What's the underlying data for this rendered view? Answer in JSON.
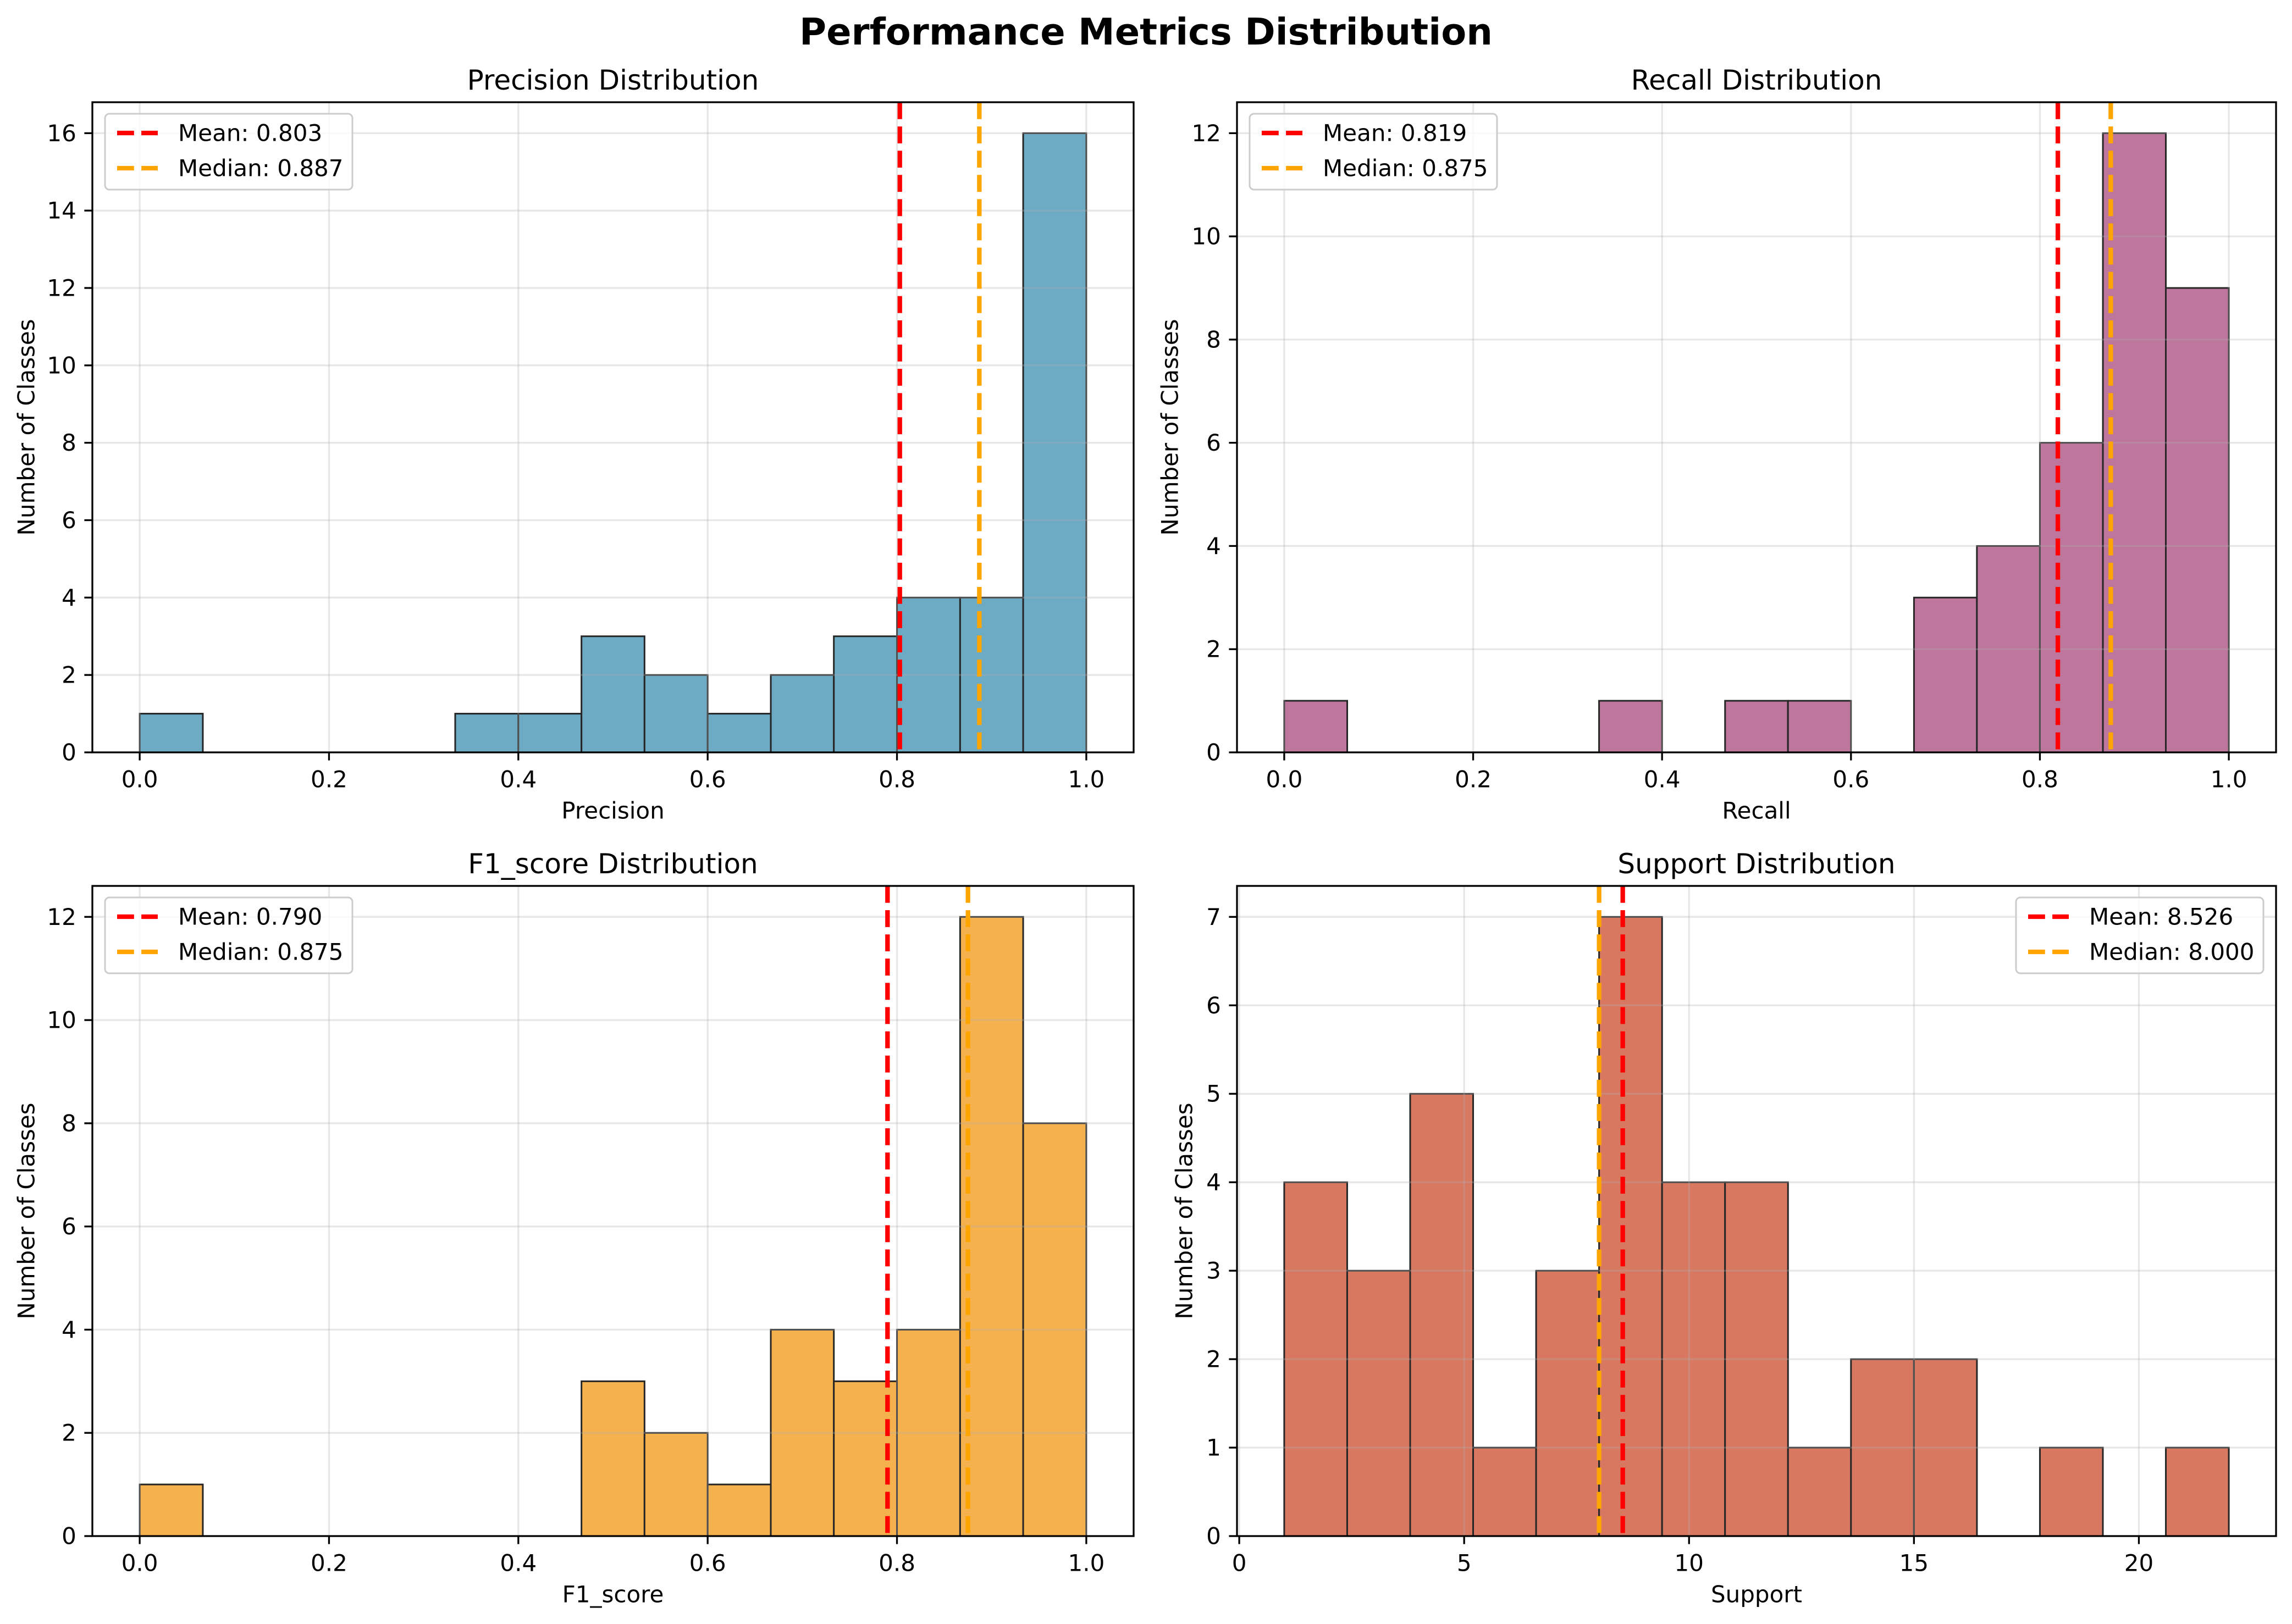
{
  "figure": {
    "title": "Performance Metrics Distribution"
  },
  "chart_data": [
    {
      "type": "bar",
      "title": "Precision Distribution",
      "xlabel": "Precision",
      "ylabel": "Number of Classes",
      "bin_edges": [
        0,
        0.0667,
        0.1333,
        0.2,
        0.2667,
        0.3333,
        0.4,
        0.4667,
        0.5333,
        0.6,
        0.6667,
        0.7333,
        0.8,
        0.8667,
        0.9333,
        1.0
      ],
      "values": [
        1,
        0,
        0,
        0,
        0,
        1,
        1,
        3,
        2,
        1,
        2,
        3,
        4,
        4,
        16
      ],
      "xlim": [
        -0.05,
        1.05
      ],
      "ylim": [
        0,
        16.8
      ],
      "xticks": [
        0,
        0.2,
        0.4,
        0.6,
        0.8,
        1.0
      ],
      "xtick_labels": [
        "0.0",
        "0.2",
        "0.4",
        "0.6",
        "0.8",
        "1.0"
      ],
      "yticks": [
        0,
        2,
        4,
        6,
        8,
        10,
        12,
        14,
        16
      ],
      "ytick_labels": [
        "0",
        "2",
        "4",
        "6",
        "8",
        "10",
        "12",
        "14",
        "16"
      ],
      "reference_lines": [
        {
          "label": "Mean: 0.803",
          "value": 0.803,
          "color": "#FF0000"
        },
        {
          "label": "Median: 0.887",
          "value": 0.887,
          "color": "#FFA500"
        }
      ],
      "bar_color": "#6DAAC4",
      "edge_color": "#262626",
      "grid": true,
      "legend_position": "top-left"
    },
    {
      "type": "bar",
      "title": "Recall Distribution",
      "xlabel": "Recall",
      "ylabel": "Number of Classes",
      "bin_edges": [
        0,
        0.0667,
        0.1333,
        0.2,
        0.2667,
        0.3333,
        0.4,
        0.4667,
        0.5333,
        0.6,
        0.6667,
        0.7333,
        0.8,
        0.8667,
        0.9333,
        1.0
      ],
      "values": [
        1,
        0,
        0,
        0,
        0,
        1,
        0,
        1,
        1,
        0,
        3,
        4,
        6,
        12,
        9
      ],
      "xlim": [
        -0.05,
        1.05
      ],
      "ylim": [
        0,
        12.6
      ],
      "xticks": [
        0,
        0.2,
        0.4,
        0.6,
        0.8,
        1.0
      ],
      "xtick_labels": [
        "0.0",
        "0.2",
        "0.4",
        "0.6",
        "0.8",
        "1.0"
      ],
      "yticks": [
        0,
        2,
        4,
        6,
        8,
        10,
        12
      ],
      "ytick_labels": [
        "0",
        "2",
        "4",
        "6",
        "8",
        "10",
        "12"
      ],
      "reference_lines": [
        {
          "label": "Mean: 0.819",
          "value": 0.819,
          "color": "#FF0000"
        },
        {
          "label": "Median: 0.875",
          "value": 0.875,
          "color": "#FFA500"
        }
      ],
      "bar_color": "#BE769C",
      "edge_color": "#262626",
      "grid": true,
      "legend_position": "top-left"
    },
    {
      "type": "bar",
      "title": "F1_score Distribution",
      "xlabel": "F1_score",
      "ylabel": "Number of Classes",
      "bin_edges": [
        0,
        0.0667,
        0.1333,
        0.2,
        0.2667,
        0.3333,
        0.4,
        0.4667,
        0.5333,
        0.6,
        0.6667,
        0.7333,
        0.8,
        0.8667,
        0.9333,
        1.0
      ],
      "values": [
        1,
        0,
        0,
        0,
        0,
        0,
        0,
        3,
        2,
        1,
        4,
        3,
        4,
        12,
        8
      ],
      "xlim": [
        -0.05,
        1.05
      ],
      "ylim": [
        0,
        12.6
      ],
      "xticks": [
        0,
        0.2,
        0.4,
        0.6,
        0.8,
        1.0
      ],
      "xtick_labels": [
        "0.0",
        "0.2",
        "0.4",
        "0.6",
        "0.8",
        "1.0"
      ],
      "yticks": [
        0,
        2,
        4,
        6,
        8,
        10,
        12
      ],
      "ytick_labels": [
        "0",
        "2",
        "4",
        "6",
        "8",
        "10",
        "12"
      ],
      "reference_lines": [
        {
          "label": "Mean: 0.790",
          "value": 0.79,
          "color": "#FF0000"
        },
        {
          "label": "Median: 0.875",
          "value": 0.875,
          "color": "#FFA500"
        }
      ],
      "bar_color": "#F5B14D",
      "edge_color": "#262626",
      "grid": true,
      "legend_position": "top-left"
    },
    {
      "type": "bar",
      "title": "Support Distribution",
      "xlabel": "Support",
      "ylabel": "Number of Classes",
      "bin_edges": [
        1,
        2.4,
        3.8,
        5.2,
        6.6,
        8.0,
        9.4,
        10.8,
        12.2,
        13.6,
        15.0,
        16.4,
        17.8,
        19.2,
        20.6,
        22.0
      ],
      "values": [
        4,
        3,
        5,
        1,
        3,
        7,
        4,
        4,
        1,
        2,
        2,
        0,
        1,
        0,
        1
      ],
      "xlim": [
        -0.05,
        23.05
      ],
      "ylim": [
        0,
        7.35
      ],
      "xticks": [
        0,
        5,
        10,
        15,
        20
      ],
      "xtick_labels": [
        "0",
        "5",
        "10",
        "15",
        "20"
      ],
      "yticks": [
        0,
        1,
        2,
        3,
        4,
        5,
        6,
        7
      ],
      "ytick_labels": [
        "0",
        "1",
        "2",
        "3",
        "4",
        "5",
        "6",
        "7"
      ],
      "reference_lines": [
        {
          "label": "Mean: 8.526",
          "value": 8.526,
          "color": "#FF0000"
        },
        {
          "label": "Median: 8.000",
          "value": 8.0,
          "color": "#FFA500"
        }
      ],
      "bar_color": "#D87861",
      "edge_color": "#262626",
      "grid": true,
      "legend_position": "top-right"
    }
  ]
}
